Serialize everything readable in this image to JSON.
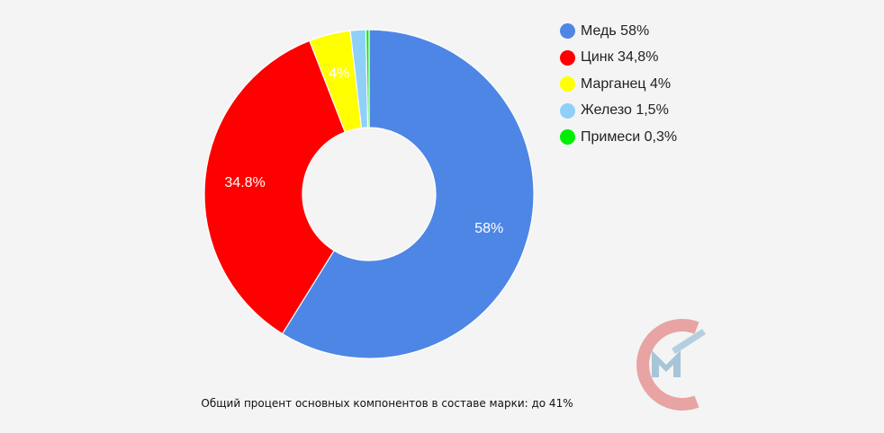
{
  "chart_data": {
    "type": "pie",
    "donut": true,
    "legend_position": "top-right",
    "series": [
      {
        "name": "Медь 58%",
        "value": 58,
        "label": "58%",
        "color": "#4e86e6"
      },
      {
        "name": "Цинк 34,8%",
        "value": 34.8,
        "label": "34.8%",
        "color": "#ff0000"
      },
      {
        "name": "Марганец 4%",
        "value": 4,
        "label": "4%",
        "color": "#ffff00"
      },
      {
        "name": "Железо 1,5%",
        "value": 1.5,
        "label": "",
        "color": "#8fd0f8"
      },
      {
        "name": "Примеси 0,3%",
        "value": 0.3,
        "label": "",
        "color": "#00ee00"
      }
    ]
  },
  "caption": "Общий процент основных компонентов в составе марки: до 41%"
}
